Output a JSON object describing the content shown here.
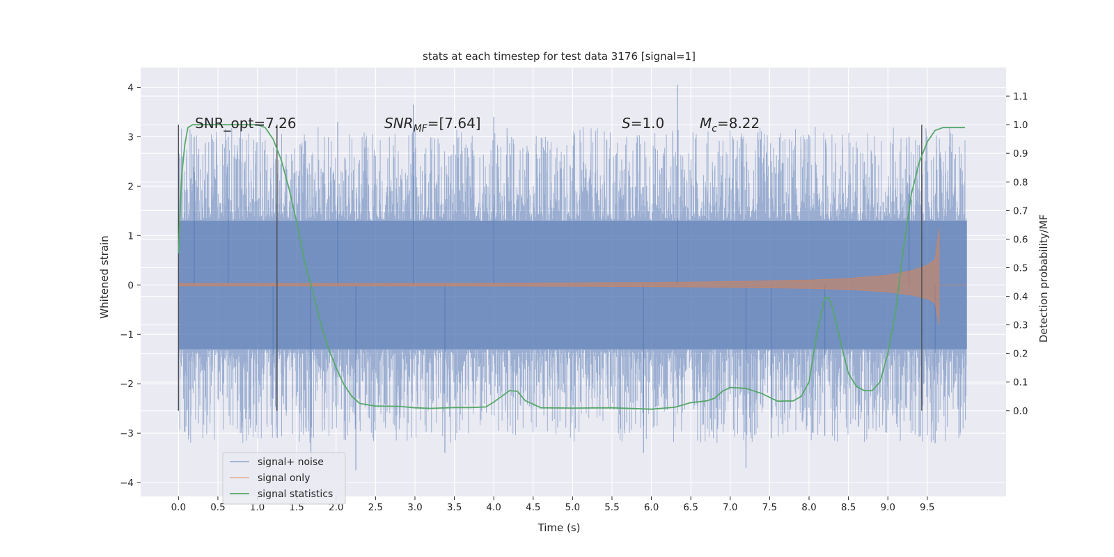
{
  "chart_data": {
    "type": "line",
    "title": "stats at each timestep for test data 3176 [signal=1]",
    "xlabel": "Time (s)",
    "ylabel": "Whitened strain",
    "y2label": "Detection probability/MF",
    "xlim": [
      -0.48,
      10.5
    ],
    "ylim": [
      -4.28,
      4.4
    ],
    "y2lim": [
      -0.3,
      1.2
    ],
    "x_ticks": [
      0.0,
      0.5,
      1.0,
      1.5,
      2.0,
      2.5,
      3.0,
      3.5,
      4.0,
      4.5,
      5.0,
      5.5,
      6.0,
      6.5,
      7.0,
      7.5,
      8.0,
      8.5,
      9.0,
      9.5
    ],
    "x_tick_labels": [
      "0.0",
      "0.5",
      "1.0",
      "1.5",
      "2.0",
      "2.5",
      "3.0",
      "3.5",
      "4.0",
      "4.5",
      "5.0",
      "5.5",
      "6.0",
      "6.5",
      "7.0",
      "7.5",
      "8.0",
      "8.5",
      "9.0",
      "9.5"
    ],
    "y_ticks": [
      4,
      3,
      2,
      1,
      0,
      -1,
      -2,
      -3,
      -4
    ],
    "y_tick_labels": [
      "4",
      "3",
      "2",
      "1",
      "0",
      "−1",
      "−2",
      "−3",
      "−4"
    ],
    "y2_ticks": [
      1.1,
      1.0,
      0.9,
      0.8,
      0.7,
      0.6,
      0.5,
      0.4,
      0.3,
      0.2,
      0.1,
      0.0
    ],
    "y2_tick_labels": [
      "1.1",
      "1.0",
      "0.9",
      "0.8",
      "0.7",
      "0.6",
      "0.5",
      "0.4",
      "0.3",
      "0.2",
      "0.1",
      "0.0"
    ],
    "grid": true,
    "legend_position": "lower-left",
    "annotations": {
      "snr_opt": "SNR_opt=7.26",
      "snr_mf_main": "SNR",
      "snr_mf_sub": "MF",
      "snr_mf_value": "=[7.64]",
      "s_symbol": "S",
      "s_value": "=1.0",
      "mc_symbol": "M",
      "mc_sub": "c",
      "mc_value": "=8.22"
    },
    "vertical_markers_x": [
      0.0,
      1.25,
      9.43
    ],
    "vertical_markers_y2_range": [
      0.0,
      1.0
    ],
    "series": [
      {
        "name": "signal+ noise",
        "axis": "left",
        "color": "#4c72b0",
        "x_range": [
          0.0,
          10.0
        ],
        "band_typical_abs": 1.3,
        "notable_peaks": [
          [
            0.2,
            3.0
          ],
          [
            0.63,
            3.0
          ],
          [
            2.02,
            3.3
          ],
          [
            2.98,
            3.65
          ],
          [
            4.0,
            3.4
          ],
          [
            6.33,
            4.05
          ],
          [
            9.27,
            3.0
          ],
          [
            1.2,
            -2.3
          ],
          [
            1.68,
            -3.45
          ],
          [
            2.25,
            -3.75
          ],
          [
            3.38,
            -3.4
          ],
          [
            5.9,
            -3.4
          ],
          [
            7.2,
            -3.7
          ],
          [
            7.52,
            -3.1
          ],
          [
            8.2,
            -3.05
          ],
          [
            9.6,
            -3.2
          ]
        ]
      },
      {
        "name": "signal only",
        "axis": "left",
        "color": "#dd8452",
        "chirp_end_time": 9.65,
        "envelope": [
          [
            0.0,
            0.03
          ],
          [
            2.0,
            0.03
          ],
          [
            4.0,
            0.035
          ],
          [
            6.0,
            0.05
          ],
          [
            7.0,
            0.07
          ],
          [
            8.0,
            0.1
          ],
          [
            8.5,
            0.13
          ],
          [
            9.0,
            0.2
          ],
          [
            9.3,
            0.29
          ],
          [
            9.5,
            0.4
          ],
          [
            9.6,
            0.52
          ],
          [
            9.65,
            1.15
          ]
        ]
      },
      {
        "name": "signal statistics",
        "axis": "right",
        "color": "#55a868",
        "x": [
          0.0,
          0.04,
          0.08,
          0.12,
          0.18,
          0.3,
          0.5,
          0.7,
          0.9,
          1.0,
          1.1,
          1.2,
          1.3,
          1.4,
          1.5,
          1.6,
          1.7,
          1.8,
          1.9,
          2.0,
          2.1,
          2.2,
          2.3,
          2.5,
          2.8,
          3.0,
          3.2,
          3.5,
          3.7,
          3.9,
          4.0,
          4.1,
          4.2,
          4.3,
          4.4,
          4.6,
          5.0,
          5.5,
          6.0,
          6.3,
          6.5,
          6.7,
          6.8,
          6.9,
          7.0,
          7.2,
          7.4,
          7.6,
          7.8,
          7.9,
          8.0,
          8.1,
          8.2,
          8.25,
          8.3,
          8.4,
          8.5,
          8.6,
          8.7,
          8.8,
          8.9,
          9.0,
          9.1,
          9.2,
          9.3,
          9.4,
          9.5,
          9.6,
          9.7,
          9.8,
          9.9,
          9.98
        ],
        "y": [
          0.55,
          0.82,
          0.93,
          0.99,
          1.0,
          1.0,
          1.0,
          1.0,
          1.0,
          1.0,
          0.99,
          0.95,
          0.88,
          0.78,
          0.66,
          0.52,
          0.42,
          0.31,
          0.22,
          0.15,
          0.09,
          0.05,
          0.025,
          0.016,
          0.015,
          0.01,
          0.008,
          0.011,
          0.011,
          0.013,
          0.03,
          0.05,
          0.07,
          0.068,
          0.035,
          0.01,
          0.009,
          0.01,
          0.005,
          0.012,
          0.028,
          0.034,
          0.043,
          0.068,
          0.081,
          0.078,
          0.06,
          0.033,
          0.034,
          0.05,
          0.1,
          0.27,
          0.395,
          0.395,
          0.36,
          0.24,
          0.13,
          0.085,
          0.07,
          0.07,
          0.1,
          0.2,
          0.35,
          0.57,
          0.76,
          0.87,
          0.94,
          0.98,
          0.99,
          0.99,
          0.99,
          0.99
        ]
      }
    ]
  }
}
